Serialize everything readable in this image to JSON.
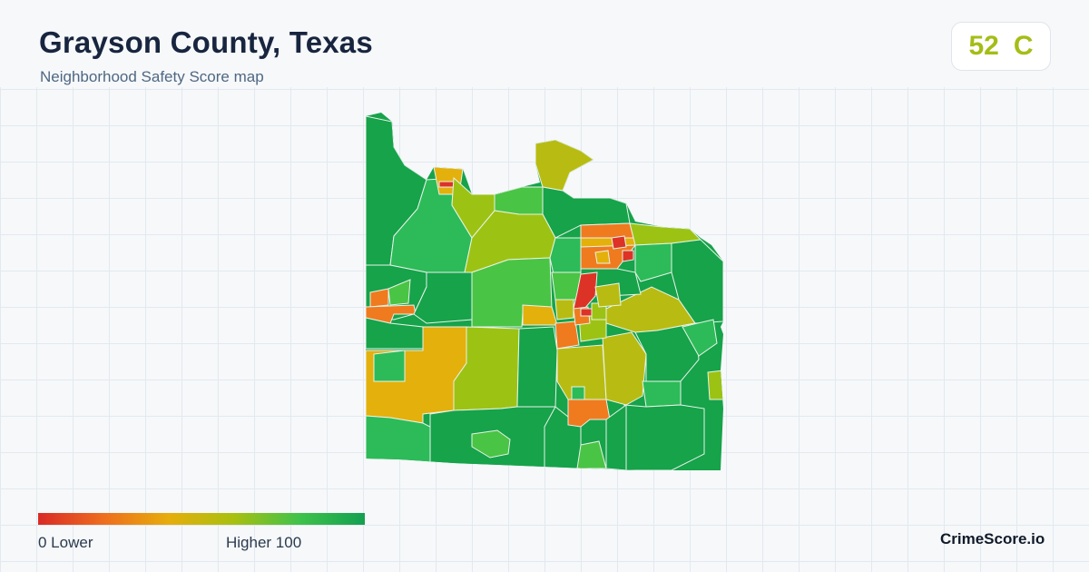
{
  "header": {
    "title": "Grayson County, Texas",
    "subtitle": "Neighborhood Safety Score map"
  },
  "score": {
    "value": "52",
    "grade": "C",
    "color": "#a5bd16"
  },
  "legend": {
    "min_label": "0  Lower",
    "max_label": "Higher  100",
    "colors": [
      "#d92a26",
      "#ee6d1e",
      "#e6ad0c",
      "#a8c010",
      "#3ec24a",
      "#14a050"
    ]
  },
  "footer": {
    "brand": "CrimeScore.io"
  },
  "map": {
    "colors": {
      "dark_green": "#16a34a",
      "green": "#2cbb58",
      "light_green": "#4ac444",
      "yellow_green": "#9cc313",
      "olive": "#b8bc12",
      "yellow": "#e4b00c",
      "orange": "#ef7b1e",
      "red": "#dc3326"
    }
  }
}
